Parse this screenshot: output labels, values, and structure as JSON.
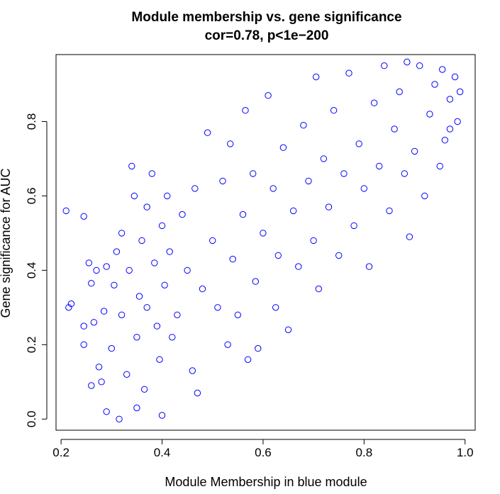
{
  "chart_data": {
    "type": "scatter",
    "title": "Module membership vs. gene significance",
    "subtitle": "cor=0.78, p<1e−200",
    "xlabel": "Module Membership in blue module",
    "ylabel": "Gene significance for  AUC",
    "xlim": [
      0.19,
      1.02
    ],
    "ylim": [
      -0.03,
      0.98
    ],
    "xticks": [
      "0.2",
      "0.4",
      "0.6",
      "0.8",
      "1.0"
    ],
    "yticks": [
      "0.0",
      "0.2",
      "0.4",
      "0.6",
      "0.8"
    ],
    "grid": false,
    "marker": "open-circle",
    "point_color": "#0000ff",
    "series": [
      {
        "points": [
          [
            0.21,
            0.56
          ],
          [
            0.215,
            0.3
          ],
          [
            0.22,
            0.31
          ],
          [
            0.245,
            0.545
          ],
          [
            0.245,
            0.25
          ],
          [
            0.245,
            0.2
          ],
          [
            0.26,
            0.09
          ],
          [
            0.255,
            0.42
          ],
          [
            0.26,
            0.365
          ],
          [
            0.265,
            0.26
          ],
          [
            0.27,
            0.4
          ],
          [
            0.275,
            0.14
          ],
          [
            0.28,
            0.1
          ],
          [
            0.285,
            0.29
          ],
          [
            0.29,
            0.02
          ],
          [
            0.29,
            0.41
          ],
          [
            0.3,
            0.19
          ],
          [
            0.305,
            0.36
          ],
          [
            0.31,
            0.45
          ],
          [
            0.315,
            0.0
          ],
          [
            0.32,
            0.5
          ],
          [
            0.32,
            0.28
          ],
          [
            0.33,
            0.12
          ],
          [
            0.335,
            0.4
          ],
          [
            0.34,
            0.68
          ],
          [
            0.345,
            0.6
          ],
          [
            0.35,
            0.22
          ],
          [
            0.35,
            0.03
          ],
          [
            0.355,
            0.33
          ],
          [
            0.36,
            0.48
          ],
          [
            0.365,
            0.08
          ],
          [
            0.37,
            0.3
          ],
          [
            0.37,
            0.57
          ],
          [
            0.38,
            0.66
          ],
          [
            0.385,
            0.42
          ],
          [
            0.39,
            0.25
          ],
          [
            0.395,
            0.16
          ],
          [
            0.4,
            0.01
          ],
          [
            0.4,
            0.52
          ],
          [
            0.405,
            0.36
          ],
          [
            0.41,
            0.6
          ],
          [
            0.415,
            0.45
          ],
          [
            0.42,
            0.22
          ],
          [
            0.43,
            0.28
          ],
          [
            0.44,
            0.55
          ],
          [
            0.45,
            0.4
          ],
          [
            0.46,
            0.13
          ],
          [
            0.465,
            0.62
          ],
          [
            0.47,
            0.07
          ],
          [
            0.48,
            0.35
          ],
          [
            0.49,
            0.77
          ],
          [
            0.5,
            0.48
          ],
          [
            0.51,
            0.3
          ],
          [
            0.52,
            0.64
          ],
          [
            0.53,
            0.2
          ],
          [
            0.535,
            0.74
          ],
          [
            0.54,
            0.43
          ],
          [
            0.55,
            0.28
          ],
          [
            0.56,
            0.55
          ],
          [
            0.565,
            0.83
          ],
          [
            0.57,
            0.16
          ],
          [
            0.58,
            0.66
          ],
          [
            0.585,
            0.37
          ],
          [
            0.59,
            0.19
          ],
          [
            0.6,
            0.5
          ],
          [
            0.61,
            0.87
          ],
          [
            0.62,
            0.62
          ],
          [
            0.625,
            0.3
          ],
          [
            0.63,
            0.44
          ],
          [
            0.64,
            0.73
          ],
          [
            0.65,
            0.24
          ],
          [
            0.66,
            0.56
          ],
          [
            0.67,
            0.41
          ],
          [
            0.68,
            0.79
          ],
          [
            0.69,
            0.64
          ],
          [
            0.7,
            0.48
          ],
          [
            0.705,
            0.92
          ],
          [
            0.71,
            0.35
          ],
          [
            0.72,
            0.7
          ],
          [
            0.73,
            0.57
          ],
          [
            0.74,
            0.83
          ],
          [
            0.75,
            0.44
          ],
          [
            0.76,
            0.66
          ],
          [
            0.77,
            0.93
          ],
          [
            0.78,
            0.52
          ],
          [
            0.79,
            0.74
          ],
          [
            0.8,
            0.62
          ],
          [
            0.81,
            0.41
          ],
          [
            0.82,
            0.85
          ],
          [
            0.83,
            0.68
          ],
          [
            0.84,
            0.95
          ],
          [
            0.85,
            0.56
          ],
          [
            0.86,
            0.78
          ],
          [
            0.87,
            0.88
          ],
          [
            0.88,
            0.66
          ],
          [
            0.885,
            0.96
          ],
          [
            0.89,
            0.49
          ],
          [
            0.9,
            0.72
          ],
          [
            0.91,
            0.95
          ],
          [
            0.92,
            0.6
          ],
          [
            0.93,
            0.82
          ],
          [
            0.94,
            0.9
          ],
          [
            0.95,
            0.68
          ],
          [
            0.955,
            0.94
          ],
          [
            0.96,
            0.75
          ],
          [
            0.97,
            0.86
          ],
          [
            0.98,
            0.92
          ],
          [
            0.985,
            0.8
          ],
          [
            0.99,
            0.88
          ],
          [
            0.97,
            0.78
          ]
        ]
      }
    ]
  }
}
